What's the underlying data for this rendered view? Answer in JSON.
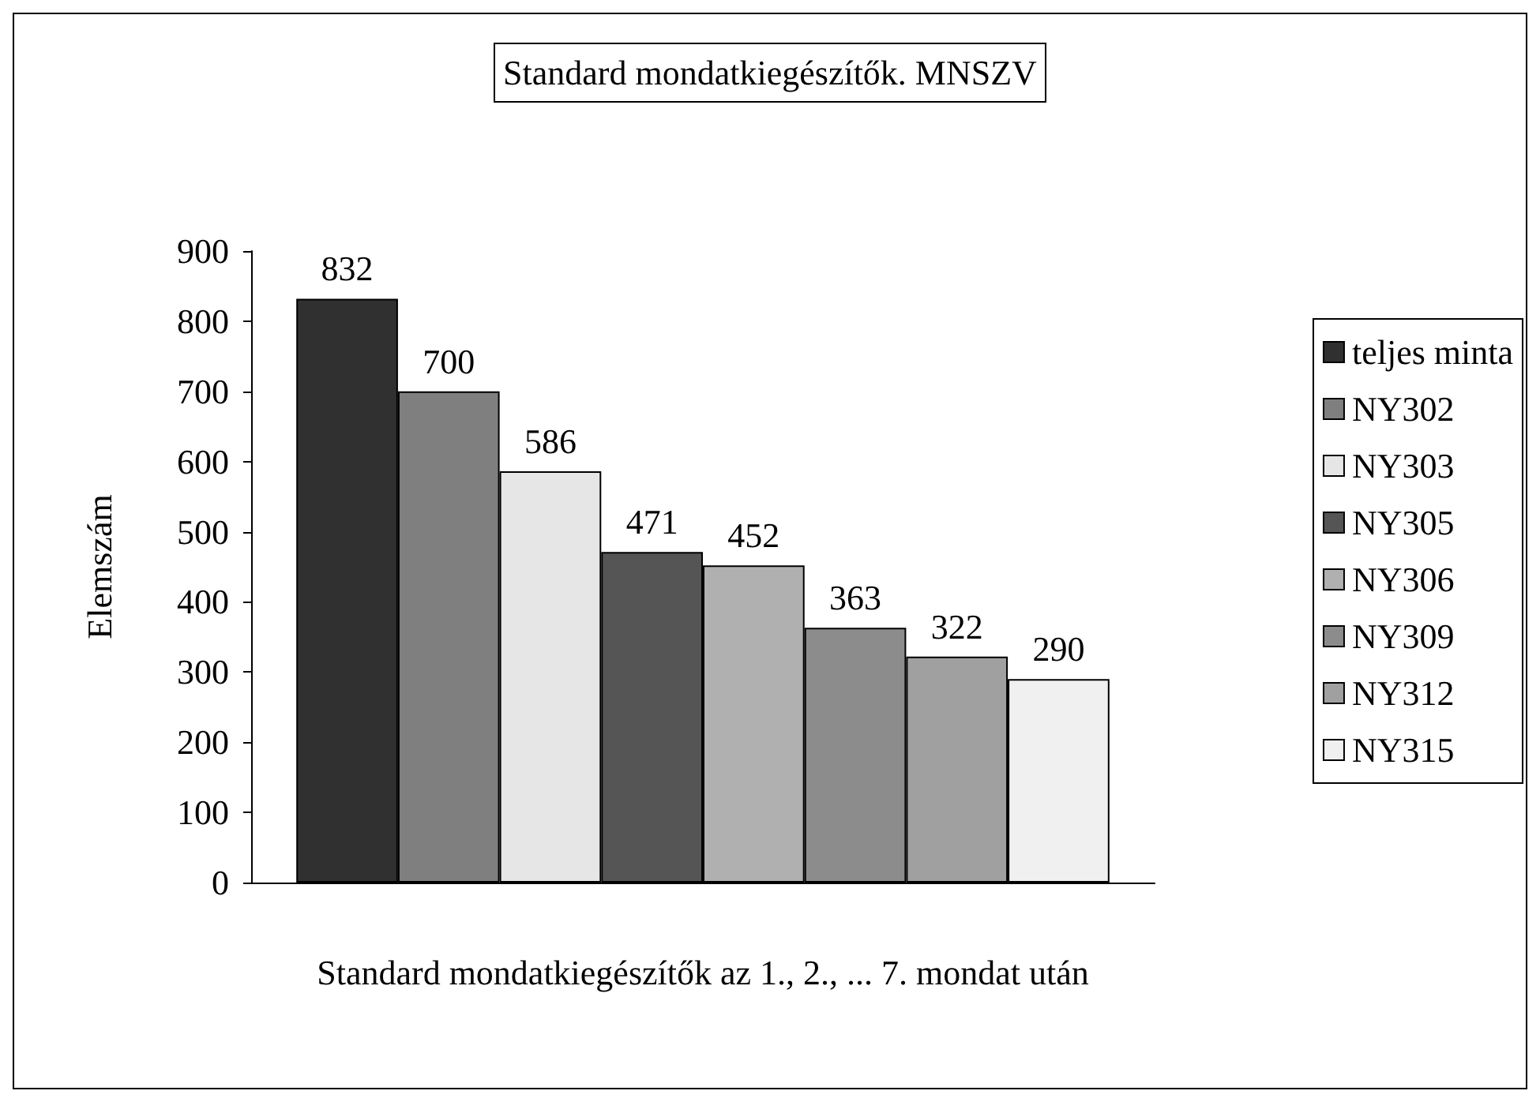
{
  "chart_data": {
    "type": "bar",
    "title": "Standard mondatkiegészítők. MNSZV",
    "xlabel": "Standard mondatkiegészítők az 1., 2., ... 7. mondat után",
    "ylabel": "Elemszám",
    "categories": [
      null
    ],
    "series": [
      {
        "name": "teljes minta",
        "color": "#303030",
        "values": [
          832
        ]
      },
      {
        "name": "NY302",
        "color": "#7f7f7f",
        "values": [
          700
        ]
      },
      {
        "name": "NY303",
        "color": "#e6e6e6",
        "values": [
          586
        ]
      },
      {
        "name": "NY305",
        "color": "#555555",
        "values": [
          471
        ]
      },
      {
        "name": "NY306",
        "color": "#b0b0b0",
        "values": [
          452
        ]
      },
      {
        "name": "NY309",
        "color": "#8c8c8c",
        "values": [
          363
        ]
      },
      {
        "name": "NY312",
        "color": "#a0a0a0",
        "values": [
          322
        ]
      },
      {
        "name": "NY315",
        "color": "#f0f0f0",
        "values": [
          290
        ]
      }
    ],
    "ylim": [
      0,
      900
    ],
    "yticks": [
      0,
      100,
      200,
      300,
      400,
      500,
      600,
      700,
      800,
      900
    ],
    "data_labels": true,
    "legend": "right",
    "grid": false
  }
}
